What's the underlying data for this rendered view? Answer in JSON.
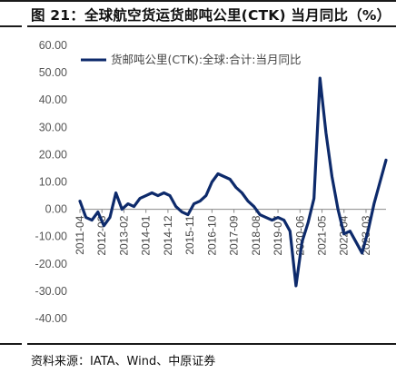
{
  "header": {
    "title": "图 21：全球航空货运货邮吨公里(CTK) 当月同比（%）"
  },
  "footer": {
    "source": "资料来源：IATA、Wind、中原证券"
  },
  "chart_data": {
    "type": "line",
    "title": "图 21：全球航空货运货邮吨公里(CTK) 当月同比（%）",
    "xlabel": "",
    "ylabel": "",
    "ylim": [
      -40,
      60
    ],
    "yticks": [
      "60.00",
      "50.00",
      "40.00",
      "30.00",
      "20.00",
      "10.00",
      "0.00",
      "-10.00",
      "-20.00",
      "-30.00",
      "-40.00"
    ],
    "xticks": [
      "2011-04",
      "2012-03",
      "2013-02",
      "2014-01",
      "2014-12",
      "2015-11",
      "2016-10",
      "2017-09",
      "2018-08",
      "2019-07",
      "2020-06",
      "2021-05",
      "2022-04",
      "2023-03"
    ],
    "grid": false,
    "legend_position": "top-left",
    "series_color": "#0d2a6b",
    "series": [
      {
        "name": "货邮吨公里(CTK):全球:合计:当月同比",
        "x": [
          "2011-04",
          "2011-07",
          "2011-10",
          "2012-01",
          "2012-04",
          "2012-07",
          "2012-10",
          "2013-01",
          "2013-04",
          "2013-07",
          "2013-10",
          "2014-01",
          "2014-04",
          "2014-07",
          "2014-10",
          "2015-01",
          "2015-04",
          "2015-07",
          "2015-10",
          "2016-01",
          "2016-04",
          "2016-07",
          "2016-10",
          "2017-01",
          "2017-04",
          "2017-07",
          "2017-10",
          "2018-01",
          "2018-04",
          "2018-07",
          "2018-10",
          "2019-01",
          "2019-04",
          "2019-07",
          "2019-10",
          "2020-01",
          "2020-04",
          "2020-07",
          "2020-10",
          "2021-01",
          "2021-04",
          "2021-07",
          "2021-10",
          "2022-01",
          "2022-04",
          "2022-07",
          "2022-10",
          "2023-01",
          "2023-04",
          "2023-07",
          "2023-10",
          "2024-01"
        ],
        "values": [
          3,
          -3,
          -4,
          -1,
          -6,
          -3,
          6,
          0,
          2,
          1,
          4,
          5,
          6,
          5,
          6,
          5,
          1,
          -1,
          -2,
          2,
          3,
          5,
          10,
          13,
          12,
          11,
          8,
          6,
          3,
          1,
          -2,
          -3,
          -4,
          -3,
          -4,
          -8,
          -28,
          -12,
          -5,
          4,
          48,
          28,
          12,
          0,
          -9,
          -8,
          -12,
          -16,
          -8,
          2,
          10,
          18
        ]
      }
    ]
  }
}
